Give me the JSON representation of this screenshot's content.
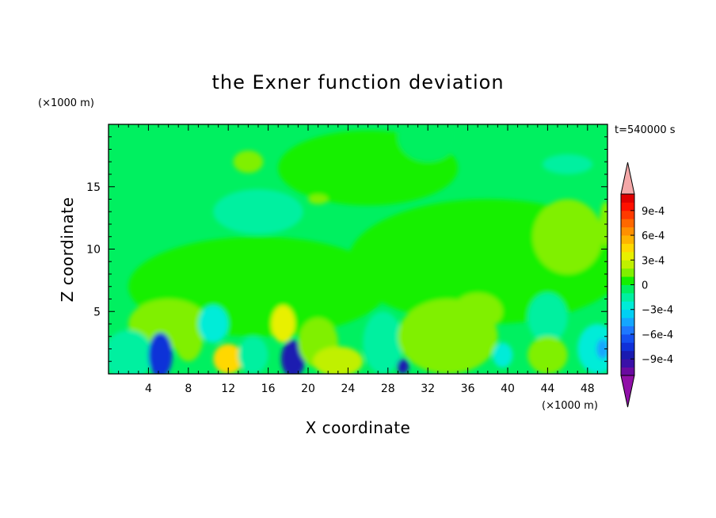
{
  "chart_data": {
    "type": "heatmap",
    "title": "the Exner function deviation",
    "xlabel": "X coordinate",
    "ylabel": "Z coordinate",
    "x_unit": "(×1000 m)",
    "y_unit": "(×1000 m)",
    "time_label": "t=540000 s",
    "xlim": [
      0,
      50
    ],
    "ylim": [
      0,
      20
    ],
    "x_ticks": [
      4,
      8,
      12,
      16,
      20,
      24,
      28,
      32,
      36,
      40,
      44,
      48
    ],
    "x_tick_labels": [
      "4",
      "8",
      "12",
      "16",
      "20",
      "24",
      "28",
      "32",
      "36",
      "40",
      "44",
      "48"
    ],
    "y_ticks": [
      5,
      10,
      15
    ],
    "y_tick_labels": [
      "5",
      "10",
      "15"
    ],
    "colorbar": {
      "levels": [
        -0.0011,
        -0.001,
        -0.0009,
        -0.0008,
        -0.0007,
        -0.0006,
        -0.0005,
        -0.0004,
        -0.0003,
        -0.0002,
        -0.0001,
        0,
        0.0001,
        0.0002,
        0.0003,
        0.0004,
        0.0005,
        0.0006,
        0.0007,
        0.0008,
        0.0009,
        0.001,
        0.0011
      ],
      "colors": [
        "#6a0aa0",
        "#3a10a8",
        "#1a1ab0",
        "#1030d8",
        "#1450f0",
        "#1e78ff",
        "#14a6ff",
        "#00d0f4",
        "#00ecd8",
        "#00f0a0",
        "#00f060",
        "#14f000",
        "#80f000",
        "#c0f000",
        "#e8f000",
        "#ffd800",
        "#ffb400",
        "#ff9000",
        "#ff6800",
        "#ff3a00",
        "#ff1000",
        "#e00000"
      ],
      "under_color": "#9010a8",
      "over_color": "#f4a8a8",
      "tick_values": [
        0.0009,
        0.0006,
        0.0003,
        0,
        -0.0003,
        -0.0006,
        -0.0009
      ],
      "tick_labels": [
        "9e-4",
        "6e-4",
        "3e-4",
        "0",
        "−3e-4",
        "−6e-4",
        "−9e-4"
      ]
    },
    "regions": [
      {
        "x": 26,
        "y": 16.5,
        "rx": 9,
        "ry": 3,
        "value": 2e-05
      },
      {
        "x": 15,
        "y": 7,
        "rx": 13,
        "ry": 4,
        "value": 2e-05
      },
      {
        "x": 38,
        "y": 9,
        "rx": 14,
        "ry": 5,
        "value": 2e-05
      },
      {
        "x": 32,
        "y": 19,
        "rx": 3,
        "ry": 2,
        "value": -3e-05
      },
      {
        "x": 15,
        "y": 13,
        "rx": 4.5,
        "ry": 1.8,
        "value": -0.00012
      },
      {
        "x": 46,
        "y": 16.8,
        "rx": 2.5,
        "ry": 0.8,
        "value": -0.00012
      },
      {
        "x": 14,
        "y": 17,
        "rx": 1.5,
        "ry": 0.9,
        "value": 0.00012
      },
      {
        "x": 21,
        "y": 14,
        "rx": 1,
        "ry": 0.4,
        "value": 0.00012
      },
      {
        "x": 46,
        "y": 11,
        "rx": 3.5,
        "ry": 3,
        "value": 0.00013
      },
      {
        "x": 49.8,
        "y": 12,
        "rx": 0.6,
        "ry": 1.8,
        "value": 0.00015
      },
      {
        "x": 13,
        "y": 8,
        "rx": 3,
        "ry": 1.5,
        "value": 8e-05
      },
      {
        "x": 6,
        "y": 4,
        "rx": 4,
        "ry": 2,
        "value": 0.0001
      },
      {
        "x": 2,
        "y": 1.5,
        "rx": 2.5,
        "ry": 2,
        "value": -0.0002
      },
      {
        "x": 5.2,
        "y": 1.5,
        "rx": 1.2,
        "ry": 1.8,
        "value": -0.0008
      },
      {
        "x": 8,
        "y": 3,
        "rx": 1.5,
        "ry": 2,
        "value": 0.00015
      },
      {
        "x": 10.5,
        "y": 4,
        "rx": 1.5,
        "ry": 1.5,
        "value": -0.0003
      },
      {
        "x": 12,
        "y": 1.2,
        "rx": 1.5,
        "ry": 1.2,
        "value": 0.0004
      },
      {
        "x": 14.5,
        "y": 1.5,
        "rx": 1.5,
        "ry": 1.5,
        "value": -0.0002
      },
      {
        "x": 17.5,
        "y": 4,
        "rx": 1.2,
        "ry": 1.5,
        "value": 0.0003
      },
      {
        "x": 18.5,
        "y": 1.2,
        "rx": 1.2,
        "ry": 1.5,
        "value": -0.0009
      },
      {
        "x": 21,
        "y": 2.5,
        "rx": 2,
        "ry": 2,
        "value": 0.0001
      },
      {
        "x": 23,
        "y": 1,
        "rx": 2.5,
        "ry": 1.2,
        "value": 0.0002
      },
      {
        "x": 27.5,
        "y": 2.5,
        "rx": 2,
        "ry": 2.5,
        "value": -0.0002
      },
      {
        "x": 29.5,
        "y": 0.6,
        "rx": 0.6,
        "ry": 0.6,
        "value": -0.0009
      },
      {
        "x": 34,
        "y": 3,
        "rx": 5,
        "ry": 3,
        "value": 0.0001
      },
      {
        "x": 37,
        "y": 5,
        "rx": 2.5,
        "ry": 1.5,
        "value": 0.00016
      },
      {
        "x": 39.5,
        "y": 1.5,
        "rx": 1,
        "ry": 1,
        "value": -0.00025
      },
      {
        "x": 44,
        "y": 4.5,
        "rx": 2,
        "ry": 2,
        "value": -0.0002
      },
      {
        "x": 44,
        "y": 1.5,
        "rx": 2,
        "ry": 1.5,
        "value": 0.00015
      },
      {
        "x": 49,
        "y": 2,
        "rx": 2,
        "ry": 2,
        "value": -0.0003
      },
      {
        "x": 49.5,
        "y": 2,
        "rx": 0.6,
        "ry": 0.8,
        "value": -0.0005
      }
    ]
  }
}
